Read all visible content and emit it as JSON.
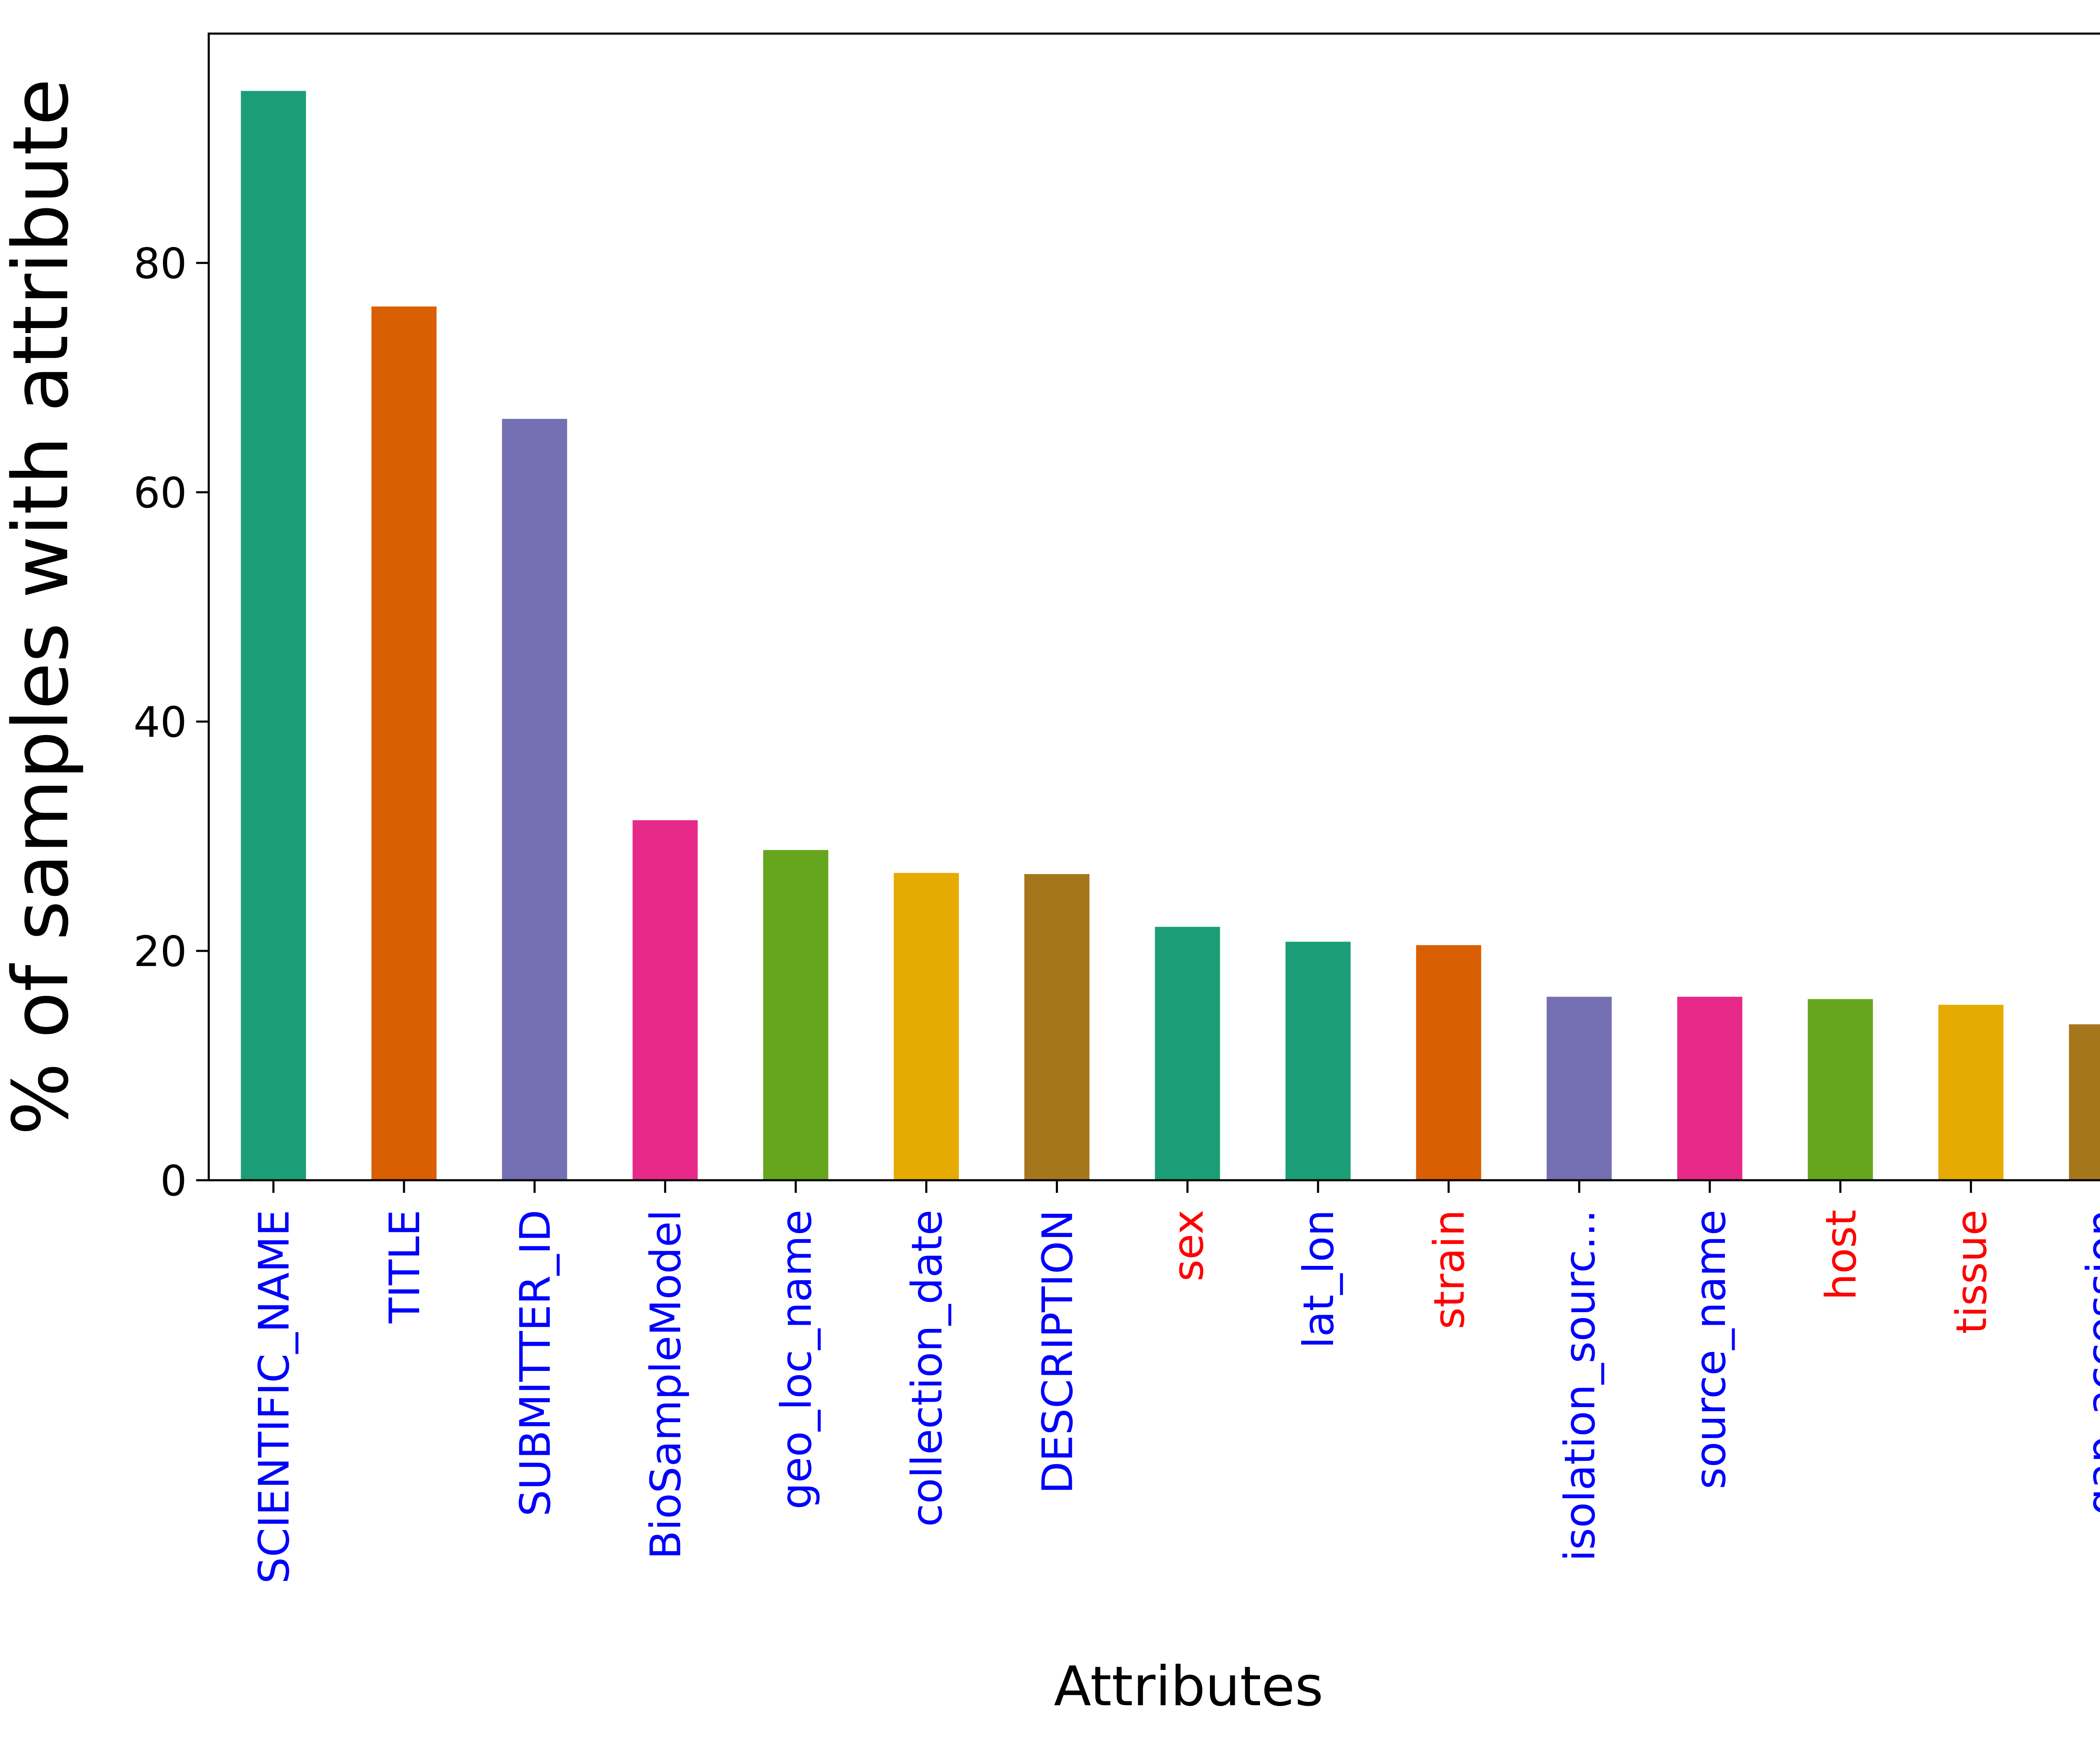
{
  "chart_data": {
    "type": "bar",
    "title": "",
    "xlabel": "Attributes",
    "ylabel": "% of samples with attribute",
    "ylim": [
      0,
      100
    ],
    "yticks": [
      0,
      20,
      40,
      60,
      80
    ],
    "grid": false,
    "legend": "none",
    "categories": [
      "SCIENTIFIC_NAME",
      "TITLE",
      "SUBMITTER_ID",
      "BioSampleModel",
      "geo_loc_name",
      "collection_date",
      "DESCRIPTION",
      "sex",
      "lat_lon",
      "strain",
      "isolation_sourc...",
      "source_name",
      "host",
      "tissue",
      "gap_accession"
    ],
    "values": [
      95.0,
      76.2,
      66.4,
      31.4,
      28.8,
      26.8,
      26.7,
      22.1,
      20.8,
      20.5,
      16.0,
      16.0,
      15.8,
      15.3,
      13.6
    ],
    "bar_colors": [
      "#1b9e77",
      "#d95f02",
      "#7570b3",
      "#e7298a",
      "#66a61e",
      "#e6ab02",
      "#a6761d",
      "#1b9e77",
      "#1b9e77",
      "#d95f02",
      "#7570b3",
      "#e7298a",
      "#66a61e",
      "#e6ab02",
      "#a6761d"
    ],
    "label_colors": [
      "#0000ff",
      "#0000ff",
      "#0000ff",
      "#0000ff",
      "#0000ff",
      "#0000ff",
      "#0000ff",
      "#ff0000",
      "#0000ff",
      "#ff0000",
      "#0000ff",
      "#0000ff",
      "#ff0000",
      "#ff0000",
      "#0000ff"
    ]
  }
}
